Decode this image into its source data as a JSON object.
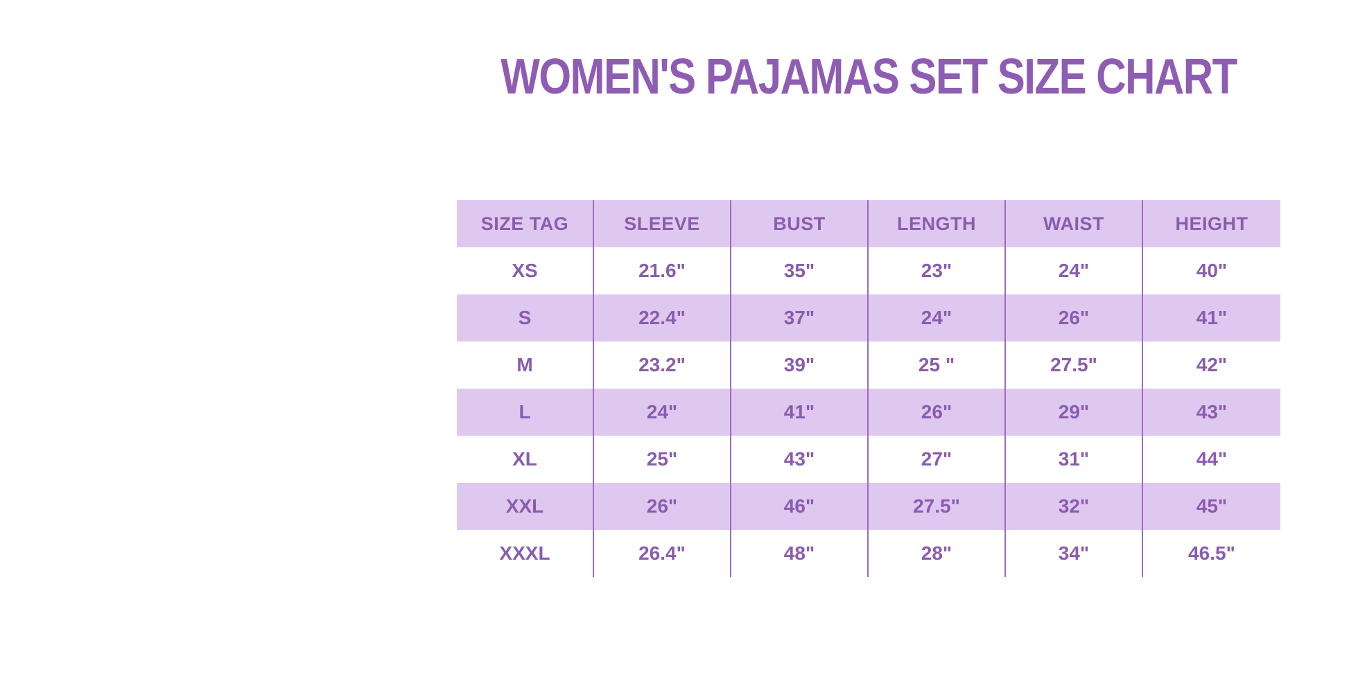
{
  "title": "WOMEN'S PAJAMAS SET SIZE CHART",
  "colors": {
    "background": "#ffffff",
    "title_text": "#8e5cb2",
    "table_text": "#8a5cad",
    "stripe": "#dfc8f0",
    "divider": "#9a6cc0"
  },
  "chart_data": {
    "type": "table",
    "title": "WOMEN'S PAJAMAS SET SIZE CHART",
    "columns": [
      "SIZE TAG",
      "SLEEVE",
      "BUST",
      "LENGTH",
      "WAIST",
      "HEIGHT"
    ],
    "rows": [
      [
        "XS",
        "21.6\"",
        "35\"",
        "23\"",
        "24\"",
        "40\""
      ],
      [
        "S",
        "22.4\"",
        "37\"",
        "24\"",
        "26\"",
        "41\""
      ],
      [
        "M",
        "23.2\"",
        "39\"",
        "25 \"",
        "27.5\"",
        "42\""
      ],
      [
        "L",
        "24\"",
        "41\"",
        "26\"",
        "29\"",
        "43\""
      ],
      [
        "XL",
        "25\"",
        "43\"",
        "27\"",
        "31\"",
        "44\""
      ],
      [
        "XXL",
        "26\"",
        "46\"",
        "27.5\"",
        "32\"",
        "45\""
      ],
      [
        "XXXL",
        "26.4\"",
        "48\"",
        "28\"",
        "34\"",
        "46.5\""
      ]
    ],
    "layout_hints": {
      "row_striping": "header and even data rows lavender, others white",
      "borders": "vertical column dividers only, no horizontal lines",
      "text_alignment": "center"
    }
  }
}
